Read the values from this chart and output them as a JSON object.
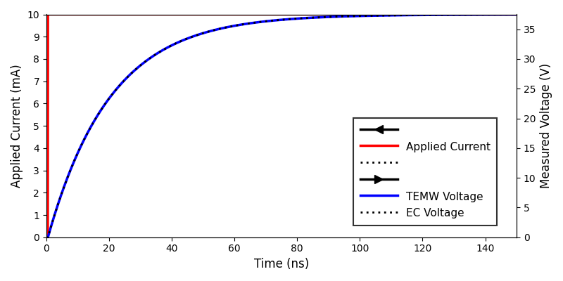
{
  "xlabel": "Time (ns)",
  "ylabel_left": "Applied Current (mA)",
  "ylabel_right": "Measured Voltage (V)",
  "xlim": [
    0,
    150
  ],
  "ylim_left": [
    0,
    10
  ],
  "ylim_right": [
    0,
    37.5
  ],
  "yticks_left": [
    0,
    1,
    2,
    3,
    4,
    5,
    6,
    7,
    8,
    9,
    10
  ],
  "yticks_right": [
    0,
    5,
    10,
    15,
    20,
    25,
    30,
    35
  ],
  "xticks": [
    0,
    20,
    40,
    60,
    80,
    100,
    120,
    140
  ],
  "time_step_ns": 0.05,
  "current_step_time": 0.5,
  "current_amplitude": 10.0,
  "tau_ns": 20.0,
  "voltage_scale": 37.5,
  "colors": {
    "applied_current": "#ff0000",
    "temw_voltage": "#0000ff",
    "ec_voltage": "#000000"
  },
  "legend": {
    "applied_current": "Applied Current",
    "temw_voltage": "TEMW Voltage",
    "ec_voltage": "EC Voltage"
  },
  "linewidths": {
    "current": 2.5,
    "voltage": 2.5,
    "ec": 2.0
  },
  "figsize": [
    8.0,
    4.0
  ],
  "dpi": 100
}
